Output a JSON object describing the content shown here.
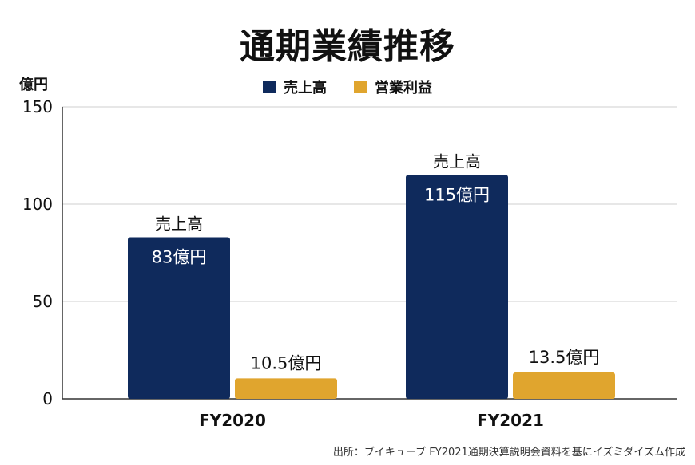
{
  "header": {
    "title": "通期業績推移",
    "unit": "億円"
  },
  "footer": {
    "source": "出所：ブイキューブ FY2021通期決算説明会資料を基にイズミダイズム作成"
  },
  "chart_data": {
    "type": "bar",
    "title": "通期業績推移",
    "xlabel": "",
    "ylabel": "億円",
    "ylim": [
      0,
      150
    ],
    "yticks": [
      0,
      50,
      100,
      150
    ],
    "grid": true,
    "legend_position": "top-center",
    "categories": [
      "FY2020",
      "FY2021"
    ],
    "series": [
      {
        "name": "売上高",
        "color": "#0f2a5c",
        "values": [
          83,
          115
        ],
        "value_labels": [
          "83億円",
          "115億円"
        ],
        "top_labels": [
          "売上高",
          "売上高"
        ]
      },
      {
        "name": "営業利益",
        "color": "#e0a52e",
        "values": [
          10.5,
          13.5
        ],
        "value_labels": [
          "10.5億円",
          "13.5億円"
        ]
      }
    ]
  }
}
